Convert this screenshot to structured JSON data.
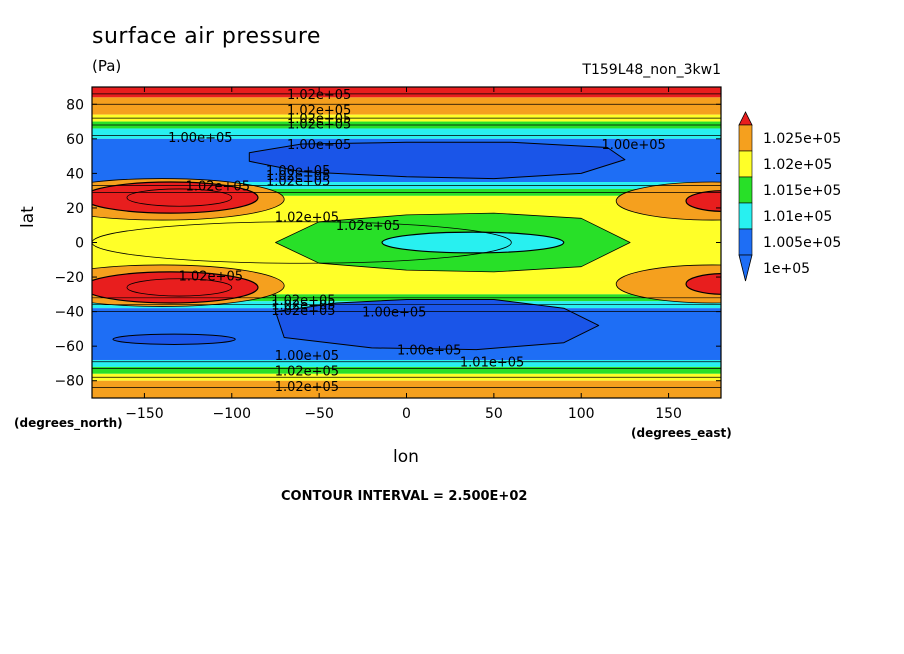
{
  "header": {
    "title": "surface air pressure",
    "units": "(Pa)",
    "run_label": "T159L48_non_3kw1"
  },
  "axes": {
    "ylabel": "lat",
    "xlabel": "lon",
    "y_units_note": "(degrees_north)",
    "x_units_note": "(degrees_east)"
  },
  "footer": {
    "contour_interval": "CONTOUR INTERVAL = 2.500E+02"
  },
  "colors": {
    "red": "#e81e1e",
    "orange": "#f5a01e",
    "yellow": "#ffff28",
    "green": "#28e028",
    "cyan": "#28f0f0",
    "blue": "#1e6ef5"
  },
  "chart_data": {
    "type": "heatmap",
    "title": "surface air pressure",
    "subtitle": "(Pa)",
    "xlabel": "lon",
    "ylabel": "lat",
    "xlim": [
      -180,
      180
    ],
    "ylim": [
      -90,
      90
    ],
    "xticks": [
      -150,
      -100,
      -50,
      0,
      50,
      100,
      150
    ],
    "yticks": [
      -80,
      -60,
      -40,
      -20,
      0,
      20,
      40,
      60,
      80
    ],
    "legend_levels": [
      "1.025e+05",
      "1.02e+05",
      "1.015e+05",
      "1.01e+05",
      "1.005e+05",
      "1e+05"
    ],
    "legend_colors": [
      "#e81e1e",
      "#f5a01e",
      "#ffff28",
      "#28e028",
      "#28f0f0",
      "#1e6ef5"
    ],
    "legend_placement": "right",
    "contour_interval": 250,
    "contour_labels": [
      {
        "text": "1.02e+05",
        "lon": -50,
        "lat": 86
      },
      {
        "text": "1.02e+05",
        "lon": -50,
        "lat": 77
      },
      {
        "text": "1.02e+05",
        "lon": -50,
        "lat": 72
      },
      {
        "text": "1.02e+05",
        "lon": -50,
        "lat": 69
      },
      {
        "text": "1.00e+05",
        "lon": -118,
        "lat": 61
      },
      {
        "text": "1.00e+05",
        "lon": -50,
        "lat": 57
      },
      {
        "text": "1.00e+05",
        "lon": 130,
        "lat": 57
      },
      {
        "text": "1.00e+05",
        "lon": -62,
        "lat": 42
      },
      {
        "text": "1.02e+05",
        "lon": -62,
        "lat": 39
      },
      {
        "text": "1.02e+05",
        "lon": -62,
        "lat": 36
      },
      {
        "text": "1.02e+05",
        "lon": -108,
        "lat": 33
      },
      {
        "text": "1.02e+05",
        "lon": -57,
        "lat": 15
      },
      {
        "text": "1.02e+05",
        "lon": -22,
        "lat": 10
      },
      {
        "text": "1.02e+05",
        "lon": -112,
        "lat": -19
      },
      {
        "text": "1.02e+05",
        "lon": -59,
        "lat": -33
      },
      {
        "text": "1.02e+05",
        "lon": -59,
        "lat": -36
      },
      {
        "text": "1.02e+05",
        "lon": -59,
        "lat": -39
      },
      {
        "text": "1.00e+05",
        "lon": -7,
        "lat": -40
      },
      {
        "text": "1.00e+05",
        "lon": 13,
        "lat": -62
      },
      {
        "text": "1.00e+05",
        "lon": -57,
        "lat": -65
      },
      {
        "text": "1.01e+05",
        "lon": 49,
        "lat": -69
      },
      {
        "text": "1.02e+05",
        "lon": -57,
        "lat": -74
      },
      {
        "text": "1.02e+05",
        "lon": -57,
        "lat": -83
      }
    ]
  }
}
